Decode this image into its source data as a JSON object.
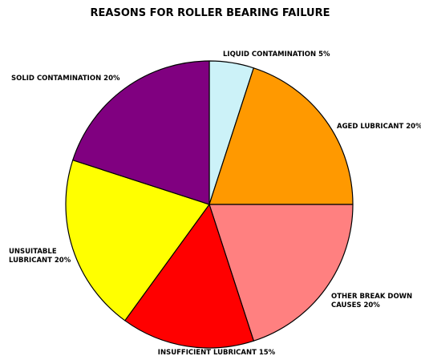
{
  "chart_data": {
    "type": "pie",
    "title": "REASONS FOR ROLLER BEARING FAILURE",
    "slices": [
      {
        "label": "LIQUID CONTAMINATION 5%",
        "lines": [
          "LIQUID CONTAMINATION 5%"
        ],
        "value": 5,
        "color": "#ccf2f8"
      },
      {
        "label": "AGED LUBRICANT 20%",
        "lines": [
          "AGED LUBRICANT 20%"
        ],
        "value": 20,
        "color": "#ff9900"
      },
      {
        "label": "OTHER BREAK DOWN CAUSES 20%",
        "lines": [
          "OTHER BREAK DOWN",
          "CAUSES 20%"
        ],
        "value": 20,
        "color": "#ff8080"
      },
      {
        "label": "INSUFFICIENT LUBRICANT 15%",
        "lines": [
          "INSUFFICIENT LUBRICANT 15%"
        ],
        "value": 15,
        "color": "#ff0000"
      },
      {
        "label": "UNSUITABLE LUBRICANT 20%",
        "lines": [
          "UNSUITABLE",
          "LUBRICANT 20%"
        ],
        "value": 20,
        "color": "#ffff00"
      },
      {
        "label": "SOLID CONTAMINATION 20%",
        "lines": [
          "SOLID CONTAMINATION 20%"
        ],
        "value": 20,
        "color": "#800080"
      }
    ],
    "start_angle_deg": 0,
    "direction": "clockwise"
  }
}
